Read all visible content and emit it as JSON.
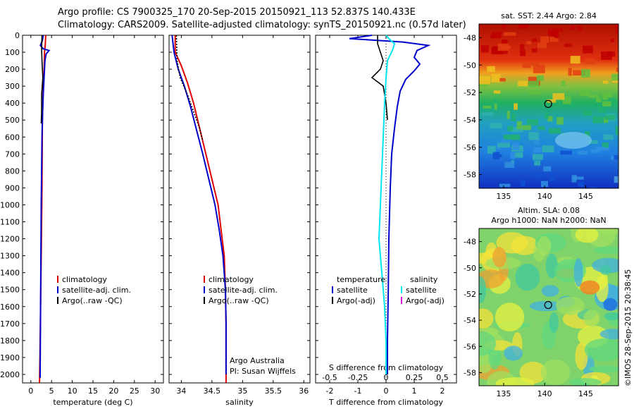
{
  "header": {
    "line1": "Argo profile: CS 7900325_170 20-Sep-2015 20150921_113 52.837S 140.433E",
    "line2": "Climatology: CARS2009. Satellite-adjusted climatology: synTS_20150921.nc (0.57d later)"
  },
  "stamp": "©IMOS 28-Sep-2015 20:38:45",
  "depth_ticks": [
    "0",
    "100",
    "200",
    "300",
    "400",
    "500",
    "600",
    "700",
    "800",
    "900",
    "1000",
    "1100",
    "1200",
    "1300",
    "1400",
    "1500",
    "1600",
    "1700",
    "1800",
    "1900",
    "2000"
  ],
  "chart_data": [
    {
      "type": "line",
      "id": "temperature",
      "xlabel": "temperature (deg C)",
      "xlim": [
        -2,
        32
      ],
      "ylim": [
        0,
        2050
      ],
      "xticks": [
        "0",
        "5",
        "10",
        "15",
        "20",
        "25",
        "30"
      ],
      "legend": [
        "climatology",
        "satellite-adj. clim.",
        "Argo(..raw -QC)"
      ],
      "series": [
        {
          "name": "climatology",
          "color": "#e00000",
          "points": [
            [
              3.6,
              0
            ],
            [
              3.5,
              50
            ],
            [
              3.3,
              100
            ],
            [
              3.2,
              200
            ],
            [
              3.0,
              300
            ],
            [
              2.9,
              400
            ],
            [
              2.8,
              500
            ],
            [
              2.75,
              700
            ],
            [
              2.7,
              900
            ],
            [
              2.6,
              1100
            ],
            [
              2.5,
              1300
            ],
            [
              2.4,
              1500
            ],
            [
              2.3,
              1700
            ],
            [
              2.2,
              1900
            ],
            [
              2.1,
              2050
            ]
          ]
        },
        {
          "name": "satellite-adj. clim.",
          "color": "#0000cc",
          "points": [
            [
              3.0,
              0
            ],
            [
              2.8,
              30
            ],
            [
              2.3,
              60
            ],
            [
              3.0,
              80
            ],
            [
              4.4,
              90
            ],
            [
              3.7,
              110
            ],
            [
              3.4,
              150
            ],
            [
              3.2,
              250
            ],
            [
              3.0,
              350
            ],
            [
              2.85,
              450
            ],
            [
              2.7,
              600
            ],
            [
              2.6,
              800
            ],
            [
              2.5,
              1000
            ],
            [
              2.45,
              1200
            ],
            [
              2.4,
              1400
            ],
            [
              2.35,
              1600
            ],
            [
              2.3,
              1800
            ],
            [
              2.25,
              2000
            ],
            [
              2.25,
              2020
            ]
          ]
        },
        {
          "name": "Argo(..raw -QC)",
          "color": "#000000",
          "points": [
            [
              2.7,
              0
            ],
            [
              2.6,
              80
            ],
            [
              2.7,
              150
            ],
            [
              2.9,
              250
            ],
            [
              2.6,
              350
            ],
            [
              2.6,
              450
            ],
            [
              2.5,
              520
            ]
          ]
        }
      ]
    },
    {
      "type": "line",
      "id": "salinity",
      "xlabel": "salinity",
      "xlim": [
        33.8,
        36.1
      ],
      "ylim": [
        0,
        2050
      ],
      "xticks": [
        "34",
        "34.5",
        "35",
        "35.5",
        "36"
      ],
      "legend": [
        "climatology",
        "satellite-adj. clim.",
        "Argo(..raw -QC)"
      ],
      "annotation": [
        "Argo Australia",
        "PI: Susan Wijffels"
      ],
      "series": [
        {
          "name": "climatology",
          "color": "#e00000",
          "points": [
            [
              33.9,
              0
            ],
            [
              33.9,
              100
            ],
            [
              34.0,
              180
            ],
            [
              34.1,
              280
            ],
            [
              34.2,
              400
            ],
            [
              34.3,
              550
            ],
            [
              34.4,
              700
            ],
            [
              34.5,
              850
            ],
            [
              34.6,
              1000
            ],
            [
              34.65,
              1150
            ],
            [
              34.7,
              1300
            ],
            [
              34.72,
              1500
            ],
            [
              34.73,
              1700
            ],
            [
              34.73,
              1900
            ],
            [
              34.73,
              2050
            ]
          ]
        },
        {
          "name": "satellite-adj. clim.",
          "color": "#0000cc",
          "points": [
            [
              33.85,
              0
            ],
            [
              33.88,
              100
            ],
            [
              33.95,
              200
            ],
            [
              34.05,
              300
            ],
            [
              34.15,
              420
            ],
            [
              34.25,
              560
            ],
            [
              34.35,
              700
            ],
            [
              34.45,
              850
            ],
            [
              34.55,
              1000
            ],
            [
              34.62,
              1150
            ],
            [
              34.68,
              1300
            ],
            [
              34.72,
              1500
            ],
            [
              34.73,
              1700
            ],
            [
              34.73,
              1900
            ],
            [
              34.73,
              2000
            ]
          ]
        },
        {
          "name": "Argo(..raw -QC)",
          "color": "#000000",
          "points": [
            [
              33.92,
              0
            ],
            [
              33.93,
              150
            ],
            [
              33.98,
              250
            ],
            [
              34.1,
              350
            ],
            [
              34.2,
              450
            ],
            [
              34.3,
              550
            ],
            [
              34.35,
              620
            ]
          ]
        }
      ]
    },
    {
      "type": "line",
      "id": "differences",
      "xlabel": "T difference from climatology",
      "xlabel2": "S difference from climatology",
      "xlim": [
        -2.5,
        2.5
      ],
      "ylim": [
        0,
        2050
      ],
      "xticks": [
        "-2",
        "-1",
        "0",
        "1",
        "2"
      ],
      "xticks2": [
        "-0.5",
        "-0.25",
        "0",
        "0.25",
        "0.5"
      ],
      "legend_headers": [
        "temperature",
        "salinity"
      ],
      "legend": [
        "satellite",
        "Argo(-adj)",
        "satellite",
        "Argo(-adj)"
      ],
      "legend_colors": [
        "#0000cc",
        "#000000",
        "#00e5ee",
        "#dd00dd"
      ],
      "series": [
        {
          "name": "T satellite",
          "color": "#0000cc",
          "points": [
            [
              -0.5,
              0
            ],
            [
              -1.3,
              20
            ],
            [
              0.6,
              40
            ],
            [
              1.5,
              60
            ],
            [
              1.1,
              90
            ],
            [
              1.0,
              130
            ],
            [
              1.2,
              170
            ],
            [
              1.0,
              210
            ],
            [
              0.7,
              260
            ],
            [
              0.5,
              330
            ],
            [
              0.4,
              420
            ],
            [
              0.3,
              550
            ],
            [
              0.2,
              700
            ],
            [
              0.15,
              900
            ],
            [
              0.1,
              1200
            ],
            [
              0.08,
              1500
            ],
            [
              0.05,
              1800
            ],
            [
              0.05,
              2000
            ]
          ]
        },
        {
          "name": "T Argo(-adj)",
          "color": "#000000",
          "points": [
            [
              -0.3,
              0
            ],
            [
              -0.3,
              50
            ],
            [
              -0.2,
              100
            ],
            [
              -0.1,
              150
            ],
            [
              -0.2,
              200
            ],
            [
              -0.5,
              250
            ],
            [
              -0.1,
              300
            ],
            [
              0.0,
              400
            ],
            [
              0.05,
              500
            ]
          ]
        },
        {
          "name": "S satellite",
          "color": "#00e5ee",
          "points": [
            [
              0.0,
              0
            ],
            [
              0.1,
              20
            ],
            [
              0.3,
              50
            ],
            [
              0.25,
              80
            ],
            [
              0.05,
              150
            ],
            [
              0.0,
              250
            ],
            [
              -0.05,
              400
            ],
            [
              -0.1,
              600
            ],
            [
              -0.15,
              800
            ],
            [
              -0.2,
              1000
            ],
            [
              -0.25,
              1200
            ],
            [
              -0.15,
              1400
            ],
            [
              -0.05,
              1600
            ],
            [
              0.0,
              1800
            ],
            [
              0.0,
              2000
            ]
          ]
        }
      ]
    },
    {
      "type": "heatmap",
      "id": "sst-map",
      "title": "sat. SST: 2.44 Argo: 2.84",
      "xticks": [
        "135",
        "140",
        "145"
      ],
      "yticks": [
        "-48",
        "-50",
        "-52",
        "-54",
        "-56",
        "-58"
      ],
      "marker": {
        "lon": 140.43,
        "lat": -52.84
      }
    },
    {
      "type": "heatmap",
      "id": "sla-map",
      "title": [
        "Altim. SLA: 0.08",
        "Argo h1000: NaN h2000: NaN"
      ],
      "xticks": [
        "135",
        "140",
        "145"
      ],
      "yticks": [
        "-48",
        "-50",
        "-52",
        "-54",
        "-56",
        "-58"
      ],
      "marker": {
        "lon": 140.43,
        "lat": -52.84
      }
    }
  ]
}
